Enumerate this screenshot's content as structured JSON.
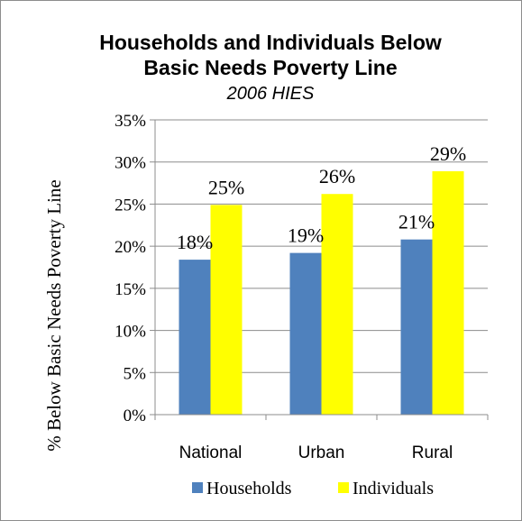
{
  "chart_data": {
    "type": "bar",
    "title_line1": "Households and Individuals Below",
    "title_line2": "Basic Needs Poverty Line",
    "subtitle": "2006 HIES",
    "xlabel": "",
    "ylabel": "% Below Basic Needs Poverty Line",
    "categories": [
      "National",
      "Urban",
      "Rural"
    ],
    "series": [
      {
        "name": "Households",
        "values": [
          18.4,
          19.2,
          20.8
        ],
        "labels": [
          "18%",
          "19%",
          "21%"
        ],
        "color": "#4f81bd"
      },
      {
        "name": "Individuals",
        "values": [
          24.9,
          26.2,
          28.9
        ],
        "labels": [
          "25%",
          "26%",
          "29%"
        ],
        "color": "#ffff00"
      }
    ],
    "ylim": [
      0,
      35
    ],
    "yticks": [
      0,
      5,
      10,
      15,
      20,
      25,
      30,
      35
    ],
    "ytick_labels": [
      "0%",
      "5%",
      "10%",
      "15%",
      "20%",
      "25%",
      "30%",
      "35%"
    ],
    "grid": true,
    "legend": "bottom"
  }
}
